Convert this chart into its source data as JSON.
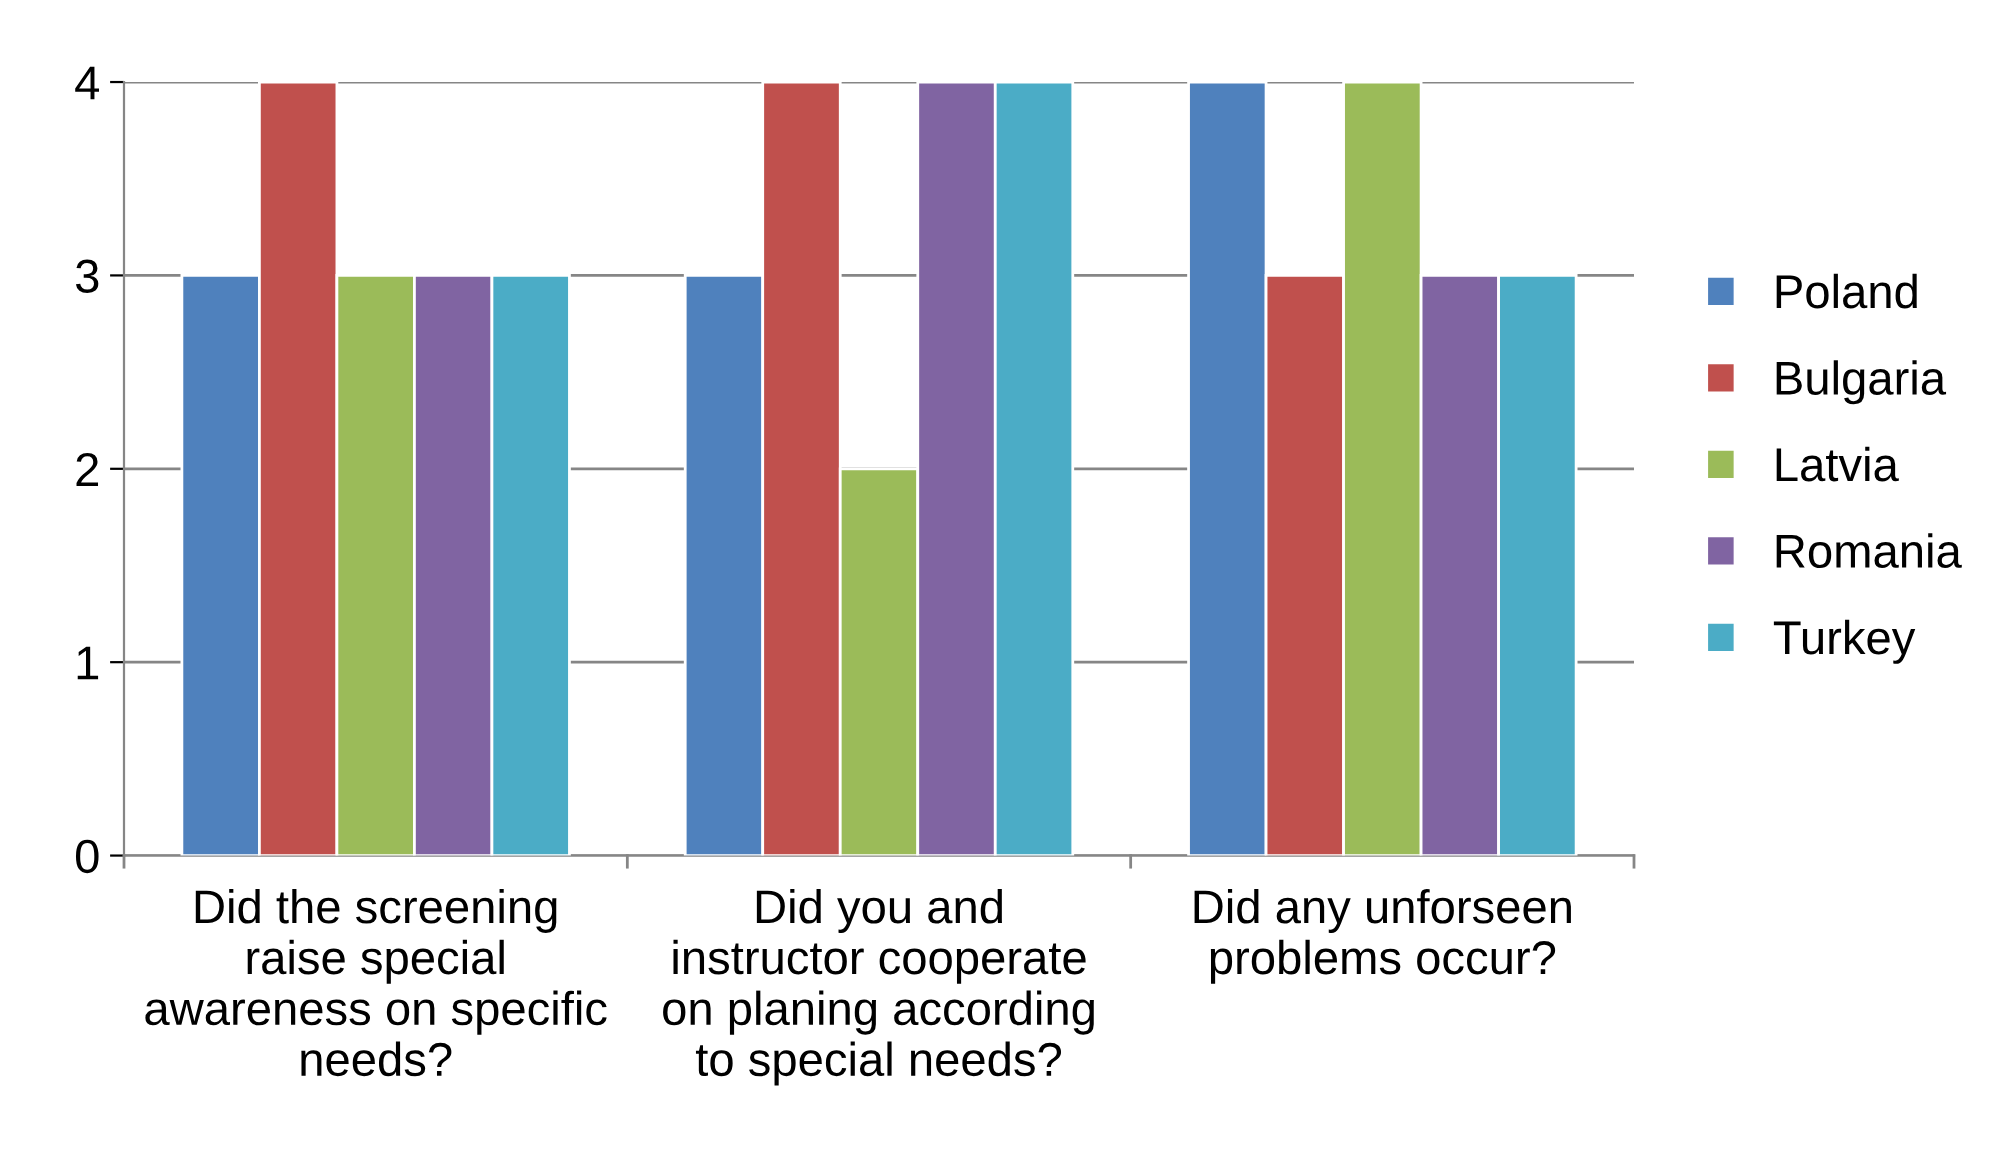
{
  "chart_data": {
    "type": "bar",
    "categories": [
      "Did the screening\nraise special\nawareness on specific\nneeds?",
      "Did you and\ninstructor cooperate\non planing according\nto special needs?",
      "Did any unforseen\nproblems occur?"
    ],
    "series": [
      {
        "name": "Poland",
        "color": "#4f81bd",
        "values": [
          3,
          3,
          4
        ]
      },
      {
        "name": "Bulgaria",
        "color": "#c0504d",
        "values": [
          4,
          4,
          3
        ]
      },
      {
        "name": "Latvia",
        "color": "#9bbb59",
        "values": [
          3,
          2,
          4
        ]
      },
      {
        "name": "Romania",
        "color": "#8064a2",
        "values": [
          3,
          4,
          3
        ]
      },
      {
        "name": "Turkey",
        "color": "#4bacc6",
        "values": [
          3,
          4,
          3
        ]
      }
    ],
    "ylim": [
      0,
      4
    ],
    "yticks": [
      0,
      1,
      2,
      3,
      4
    ],
    "grid": "y",
    "legend": "right"
  }
}
